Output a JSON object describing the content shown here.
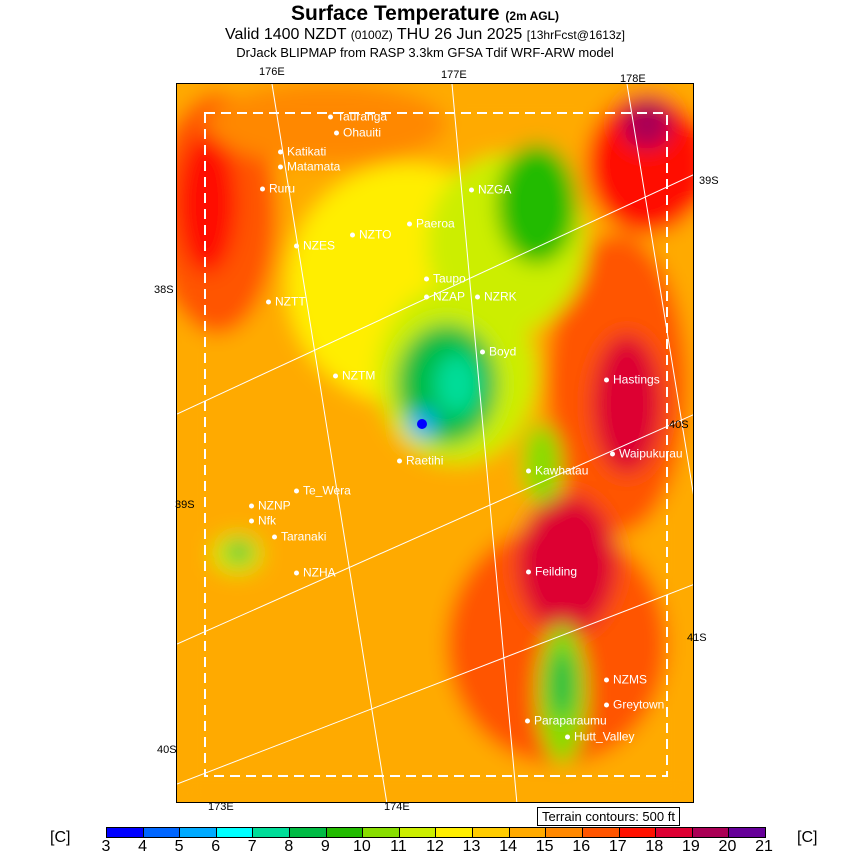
{
  "header": {
    "title": "Surface Temperature",
    "title_suffix": "(2m AGL)",
    "valid_prefix": "Valid 1400 NZDT",
    "valid_utc": "(0100Z)",
    "valid_date": "THU 26 Jun 2025",
    "forecast": "[13hrFcst@1613z]",
    "model": "DrJack BLIPMAP from RASP 3.3km GFSA Tdif WRF-ARW model"
  },
  "coords": [
    "176E",
    "177E",
    "178E",
    "39S",
    "38S",
    "40S",
    "39S",
    "41S",
    "40S",
    "173E",
    "174E"
  ],
  "towns": [
    "Tauranga",
    "Ohauiti",
    "Matamata",
    "Katikati",
    "Ruru",
    "NZGA",
    "Paeroa",
    "NZTO",
    "NZES",
    "Taupo",
    "NZAP",
    "NZRK",
    "NZTT",
    "Boyd",
    "NZTM",
    "Hastings",
    "Raetihi",
    "Waipukurau",
    "Kawhatau",
    "Te_Wera",
    "NZNP",
    "Nfk",
    "Taranaki",
    "NZHA",
    "Feilding",
    "NZMS",
    "Greytown",
    "Paraparaumu",
    "Hutt_Valley"
  ],
  "terrain_note": "Terrain contours: 500 ft",
  "colorbar": {
    "unit": "[C]",
    "ticks": [
      "3",
      "4",
      "5",
      "6",
      "7",
      "8",
      "9",
      "10",
      "11",
      "12",
      "13",
      "14",
      "15",
      "16",
      "17",
      "18",
      "19",
      "20",
      "21"
    ],
    "colors": [
      "#0000ff",
      "#0066ff",
      "#00aaff",
      "#00ffff",
      "#00dd99",
      "#00bb44",
      "#22bb00",
      "#88dd00",
      "#ccee00",
      "#ffee00",
      "#ffcc00",
      "#ffaa00",
      "#ff8800",
      "#ff5500",
      "#ff1100",
      "#dd0033",
      "#aa0055",
      "#660099"
    ]
  }
}
